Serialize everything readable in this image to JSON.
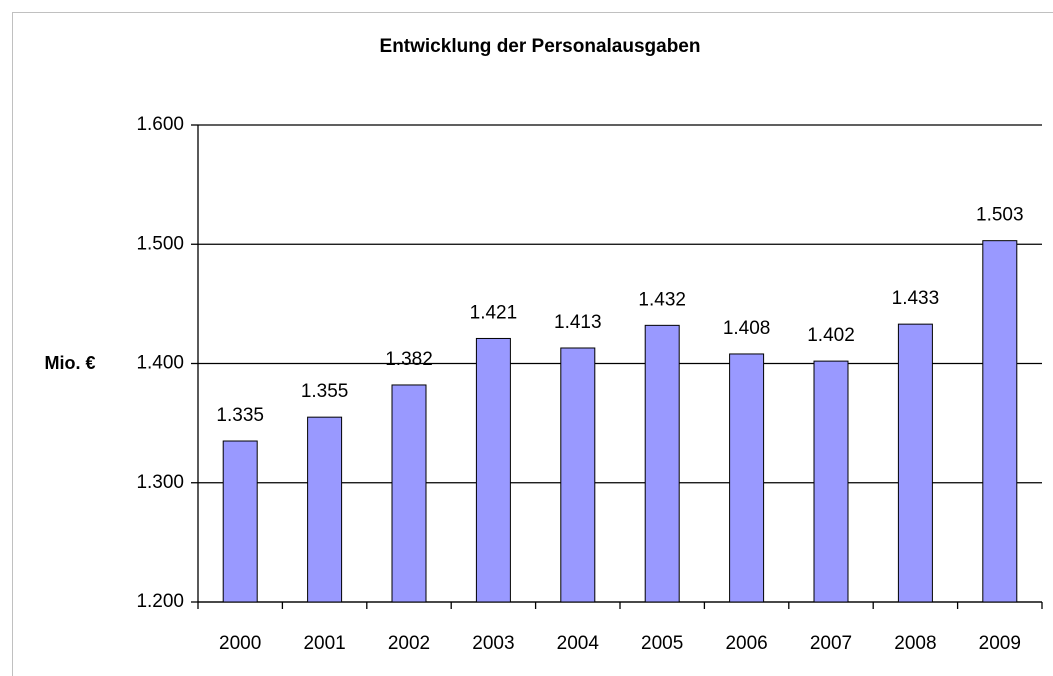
{
  "chart_data": {
    "type": "bar",
    "title": "Entwicklung der Personalausgaben",
    "y_label": "Mio. €",
    "categories": [
      "2000",
      "2001",
      "2002",
      "2003",
      "2004",
      "2005",
      "2006",
      "2007",
      "2008",
      "2009"
    ],
    "values": [
      1335,
      1355,
      1382,
      1421,
      1413,
      1432,
      1408,
      1402,
      1433,
      1503
    ],
    "value_labels": [
      "1.335",
      "1.355",
      "1.382",
      "1.421",
      "1.413",
      "1.432",
      "1.408",
      "1.402",
      "1.433",
      "1.503"
    ],
    "color": "#9999ff",
    "ylim": [
      1200,
      1600
    ],
    "yticks": [
      {
        "value": 1200,
        "label": "1.200"
      },
      {
        "value": 1300,
        "label": "1.300"
      },
      {
        "value": 1400,
        "label": "1.400"
      },
      {
        "value": 1500,
        "label": "1.500"
      },
      {
        "value": 1600,
        "label": "1.600"
      }
    ],
    "grid": true
  }
}
